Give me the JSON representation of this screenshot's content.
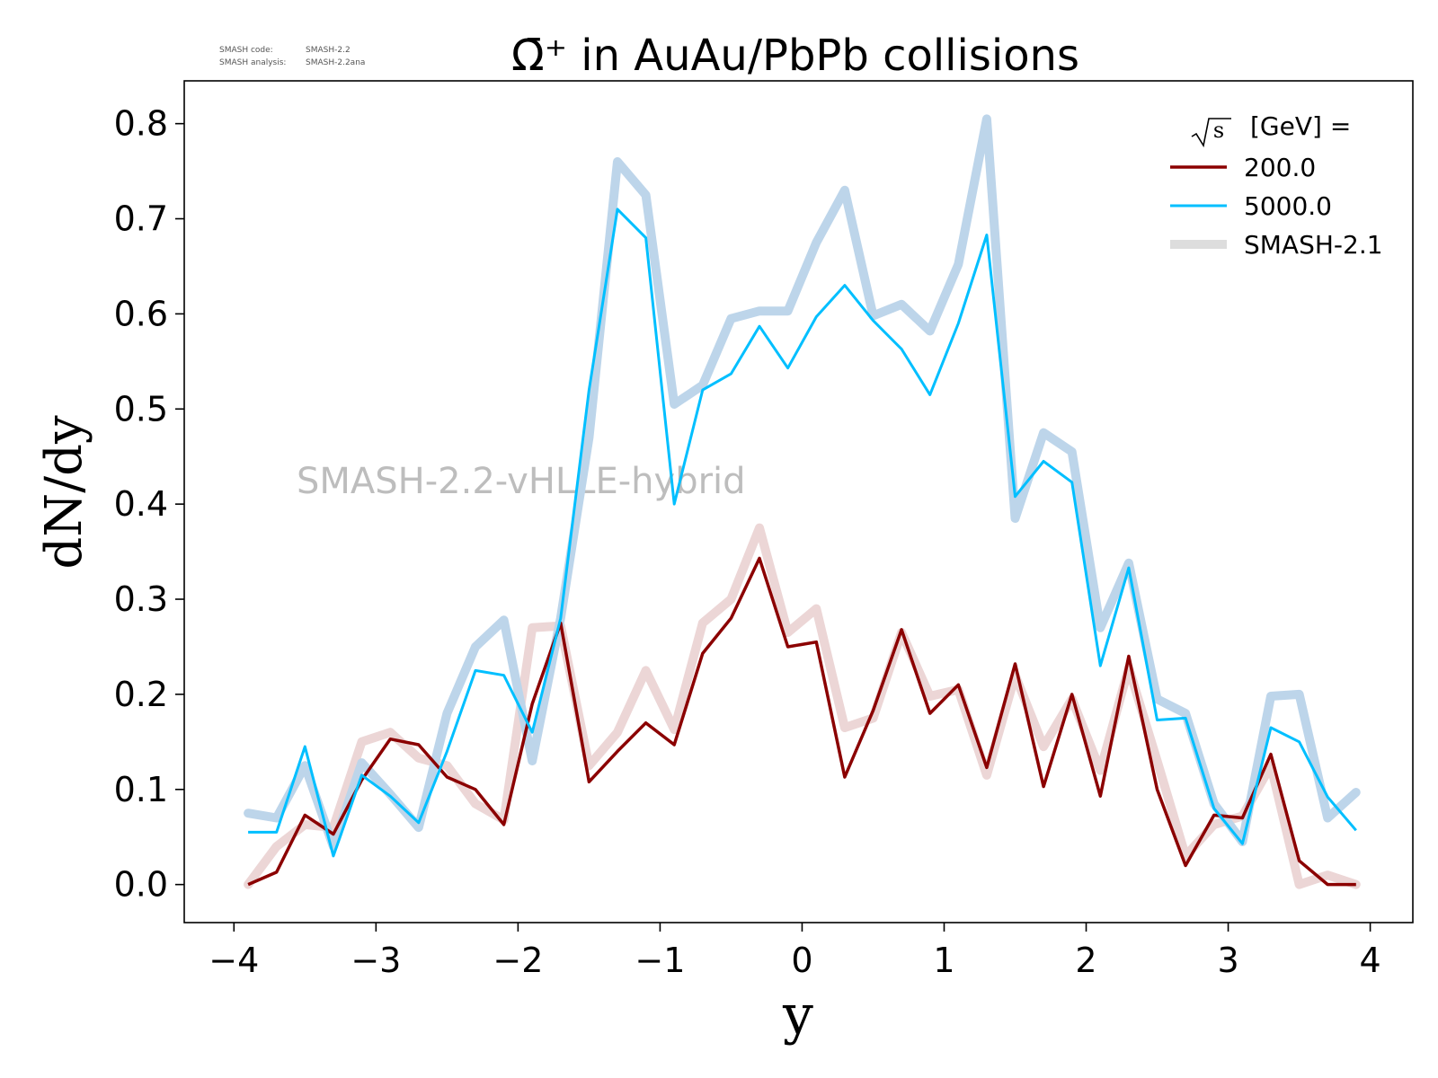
{
  "meta": {
    "code_label": "SMASH code:",
    "code_value": "SMASH-2.2",
    "analysis_label": "SMASH analysis:",
    "analysis_value": "SMASH-2.2ana"
  },
  "watermark": "SMASH-2.2-vHLLE-hybrid",
  "colors": {
    "series_200": "#8b0000",
    "series_5000": "#00bfff",
    "ref_200": "#ecd6d6",
    "ref_5000": "#bdd5ea",
    "legend_ref": "#dddddd",
    "watermark": "#bdbdbd"
  },
  "chart_data": {
    "type": "line",
    "title": "Ω̄⁺ in AuAu/PbPb collisions",
    "xlabel": "y",
    "ylabel": "dN/dy",
    "xlim": [
      -4.35,
      4.3
    ],
    "ylim": [
      -0.04,
      0.845
    ],
    "xticks": [
      -4,
      -3,
      -2,
      -1,
      0,
      1,
      2,
      3,
      4
    ],
    "xtick_labels": [
      "−4",
      "−3",
      "−2",
      "−1",
      "0",
      "1",
      "2",
      "3",
      "4"
    ],
    "yticks": [
      0.0,
      0.1,
      0.2,
      0.3,
      0.4,
      0.5,
      0.6,
      0.7,
      0.8
    ],
    "ytick_labels": [
      "0.0",
      "0.1",
      "0.2",
      "0.3",
      "0.4",
      "0.5",
      "0.6",
      "0.7",
      "0.8"
    ],
    "grid": false,
    "legend": {
      "placement": "top-right",
      "title_suffix": "[GeV] =",
      "entries": [
        "200.0",
        "5000.0",
        "SMASH-2.1"
      ]
    },
    "x": [
      -3.9,
      -3.7,
      -3.5,
      -3.3,
      -3.1,
      -2.9,
      -2.7,
      -2.5,
      -2.3,
      -2.1,
      -1.9,
      -1.7,
      -1.5,
      -1.3,
      -1.1,
      -0.9,
      -0.7,
      -0.5,
      -0.3,
      -0.1,
      0.1,
      0.3,
      0.5,
      0.7,
      0.9,
      1.1,
      1.3,
      1.5,
      1.7,
      1.9,
      2.1,
      2.3,
      2.5,
      2.7,
      2.9,
      3.1,
      3.3,
      3.5,
      3.7,
      3.9
    ],
    "series": [
      {
        "name": "200.0",
        "values": [
          0.0,
          0.013,
          0.073,
          0.053,
          0.11,
          0.153,
          0.147,
          0.113,
          0.1,
          0.063,
          0.19,
          0.275,
          0.108,
          0.14,
          0.17,
          0.147,
          0.243,
          0.28,
          0.343,
          0.25,
          0.255,
          0.113,
          0.183,
          0.268,
          0.18,
          0.21,
          0.123,
          0.232,
          0.103,
          0.2,
          0.093,
          0.24,
          0.1,
          0.02,
          0.073,
          0.07,
          0.137,
          0.025,
          0.0,
          0.0
        ]
      },
      {
        "name": "5000.0",
        "values": [
          0.055,
          0.055,
          0.145,
          0.03,
          0.115,
          0.093,
          0.065,
          0.14,
          0.225,
          0.22,
          0.16,
          0.28,
          0.52,
          0.71,
          0.68,
          0.4,
          0.52,
          0.537,
          0.587,
          0.543,
          0.597,
          0.63,
          0.593,
          0.563,
          0.515,
          0.59,
          0.683,
          0.408,
          0.445,
          0.423,
          0.23,
          0.333,
          0.173,
          0.175,
          0.08,
          0.043,
          0.165,
          0.15,
          0.092,
          0.057
        ]
      }
    ],
    "reference_series": [
      {
        "name": "SMASH-2.1",
        "energy": "200.0",
        "values": [
          0.0,
          0.04,
          0.063,
          0.06,
          0.15,
          0.16,
          0.133,
          0.125,
          0.085,
          0.068,
          0.27,
          0.272,
          0.125,
          0.16,
          0.225,
          0.163,
          0.275,
          0.3,
          0.375,
          0.265,
          0.29,
          0.165,
          0.175,
          0.265,
          0.198,
          0.205,
          0.115,
          0.22,
          0.145,
          0.195,
          0.12,
          0.228,
          0.13,
          0.03,
          0.063,
          0.072,
          0.125,
          0.0,
          0.01,
          0.0
        ]
      },
      {
        "name": "SMASH-2.1",
        "energy": "5000.0",
        "values": [
          0.075,
          0.07,
          0.125,
          0.04,
          0.128,
          0.095,
          0.06,
          0.18,
          0.25,
          0.278,
          0.13,
          0.28,
          0.47,
          0.76,
          0.725,
          0.505,
          0.525,
          0.595,
          0.603,
          0.603,
          0.675,
          0.73,
          0.598,
          0.61,
          0.582,
          0.652,
          0.805,
          0.385,
          0.475,
          0.455,
          0.27,
          0.338,
          0.195,
          0.18,
          0.085,
          0.045,
          0.198,
          0.2,
          0.07,
          0.097
        ]
      }
    ]
  }
}
